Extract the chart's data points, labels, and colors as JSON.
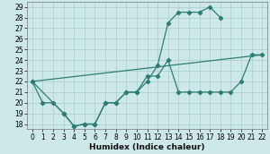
{
  "xlabel": "Humidex (Indice chaleur)",
  "bg_color": "#cde8e8",
  "line_color": "#2e7d72",
  "grid_color": "#b0d0d0",
  "xlim": [
    -0.5,
    22.5
  ],
  "ylim": [
    17.5,
    29.5
  ],
  "xticks": [
    0,
    1,
    2,
    3,
    4,
    5,
    6,
    7,
    8,
    9,
    10,
    11,
    12,
    13,
    14,
    15,
    16,
    17,
    18,
    19,
    20,
    21,
    22
  ],
  "yticks": [
    18,
    19,
    20,
    21,
    22,
    23,
    24,
    25,
    26,
    27,
    28,
    29
  ],
  "line1_x": [
    0,
    1,
    2,
    3,
    4,
    5,
    6,
    7,
    8,
    9,
    10,
    11,
    12,
    13,
    14,
    15,
    16,
    17,
    18
  ],
  "line1_y": [
    22,
    20,
    20,
    19,
    17.8,
    18,
    18,
    20,
    20,
    21,
    21,
    22,
    23.5,
    27.5,
    28.5,
    28.5,
    28.5,
    29,
    28
  ],
  "line2_x": [
    0,
    3,
    4,
    5,
    6,
    7,
    8,
    9,
    10,
    11,
    12,
    13,
    14,
    15,
    16,
    17,
    18,
    19,
    20,
    21,
    22
  ],
  "line2_y": [
    22,
    19,
    17.8,
    18,
    18,
    20,
    20,
    21,
    21,
    22.5,
    22.5,
    24,
    21,
    21,
    21,
    21,
    21,
    21,
    22,
    24.5,
    24.5
  ],
  "line3_x": [
    0,
    22
  ],
  "line3_y": [
    22,
    24.5
  ],
  "xlabel_fontsize": 6.5,
  "tick_fontsize": 5.5
}
